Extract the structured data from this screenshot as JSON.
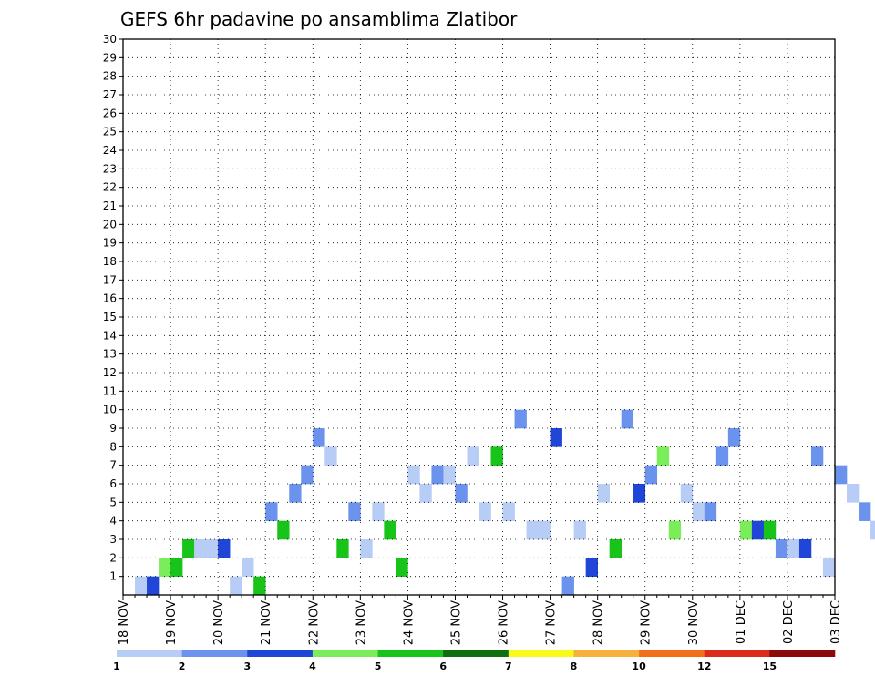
{
  "chart_data": {
    "type": "heatmap",
    "title": "GEFS 6hr padavine po ansamblima Zlatibor",
    "xlabel": "",
    "ylabel": "",
    "x_labels": [
      "18 NOV",
      "19 NOV",
      "20 NOV",
      "21 NOV",
      "22 NOV",
      "23 NOV",
      "24 NOV",
      "25 NOV",
      "26 NOV",
      "27 NOV",
      "28 NOV",
      "29 NOV",
      "30 NOV",
      "01 DEC",
      "02 DEC",
      "03 DEC"
    ],
    "x_step_hours": 6,
    "y_labels": [
      "1",
      "2",
      "3",
      "4",
      "5",
      "6",
      "7",
      "8",
      "9",
      "10",
      "11",
      "12",
      "13",
      "14",
      "15",
      "16",
      "17",
      "18",
      "19",
      "20",
      "21",
      "22",
      "23",
      "24",
      "25",
      "26",
      "27",
      "28",
      "29",
      "30"
    ],
    "y_range": [
      0,
      30
    ],
    "grid": true,
    "legend": {
      "placement": "bottom",
      "bounds": [
        "1",
        "2",
        "3",
        "4",
        "5",
        "6",
        "7",
        "8",
        "10",
        "12",
        "15",
        "20"
      ],
      "colors": [
        "#b8cdf5",
        "#6b93ed",
        "#1f46d6",
        "#7ced5a",
        "#19c41a",
        "#0e6e10",
        "#fafa1a",
        "#f7b03a",
        "#f26f1a",
        "#dc2b1c",
        "#8c0a0a"
      ]
    },
    "cells": [
      [
        1,
        0,
        0
      ],
      [
        2,
        2,
        0
      ],
      [
        3,
        3,
        1
      ],
      [
        4,
        4,
        1
      ],
      [
        5,
        4,
        2
      ],
      [
        6,
        0,
        2
      ],
      [
        7,
        0,
        2
      ],
      [
        8,
        2,
        2
      ],
      [
        9,
        0,
        0
      ],
      [
        10,
        0,
        1
      ],
      [
        11,
        4,
        0
      ],
      [
        12,
        1,
        4
      ],
      [
        13,
        4,
        3
      ],
      [
        14,
        1,
        5
      ],
      [
        15,
        1,
        6
      ],
      [
        16,
        1,
        8
      ],
      [
        17,
        0,
        7
      ],
      [
        18,
        4,
        2
      ],
      [
        19,
        1,
        4
      ],
      [
        20,
        0,
        2
      ],
      [
        21,
        0,
        4
      ],
      [
        22,
        4,
        3
      ],
      [
        23,
        4,
        1
      ],
      [
        24,
        0,
        6
      ],
      [
        25,
        0,
        5
      ],
      [
        26,
        1,
        6
      ],
      [
        27,
        0,
        6
      ],
      [
        28,
        1,
        5
      ],
      [
        29,
        0,
        7
      ],
      [
        30,
        0,
        4
      ],
      [
        31,
        4,
        7
      ],
      [
        32,
        0,
        4
      ],
      [
        33,
        1,
        9
      ],
      [
        34,
        0,
        3
      ],
      [
        35,
        0,
        3
      ],
      [
        36,
        2,
        8
      ],
      [
        37,
        1,
        0
      ],
      [
        38,
        0,
        3
      ],
      [
        39,
        2,
        1
      ],
      [
        40,
        0,
        5
      ],
      [
        41,
        4,
        2
      ],
      [
        42,
        1,
        9
      ],
      [
        43,
        2,
        5
      ],
      [
        44,
        1,
        6
      ],
      [
        45,
        3,
        7
      ],
      [
        46,
        3,
        3
      ],
      [
        47,
        0,
        5
      ],
      [
        48,
        0,
        4
      ],
      [
        49,
        1,
        4
      ],
      [
        50,
        1,
        7
      ],
      [
        51,
        1,
        8
      ],
      [
        52,
        3,
        3
      ],
      [
        53,
        2,
        3
      ],
      [
        54,
        4,
        3
      ],
      [
        55,
        1,
        2
      ],
      [
        56,
        0,
        2
      ],
      [
        57,
        2,
        2
      ],
      [
        58,
        1,
        7
      ],
      [
        59,
        0,
        1
      ],
      [
        60,
        1,
        6
      ],
      [
        61,
        0,
        5
      ],
      [
        62,
        1,
        4
      ],
      [
        63,
        0,
        3
      ],
      [
        64,
        1,
        6
      ],
      [
        65,
        4,
        2
      ],
      [
        66,
        1,
        6
      ],
      [
        67,
        0,
        1
      ],
      [
        68,
        3,
        3
      ],
      [
        69,
        0,
        1
      ],
      [
        70,
        2,
        2
      ]
    ]
  }
}
